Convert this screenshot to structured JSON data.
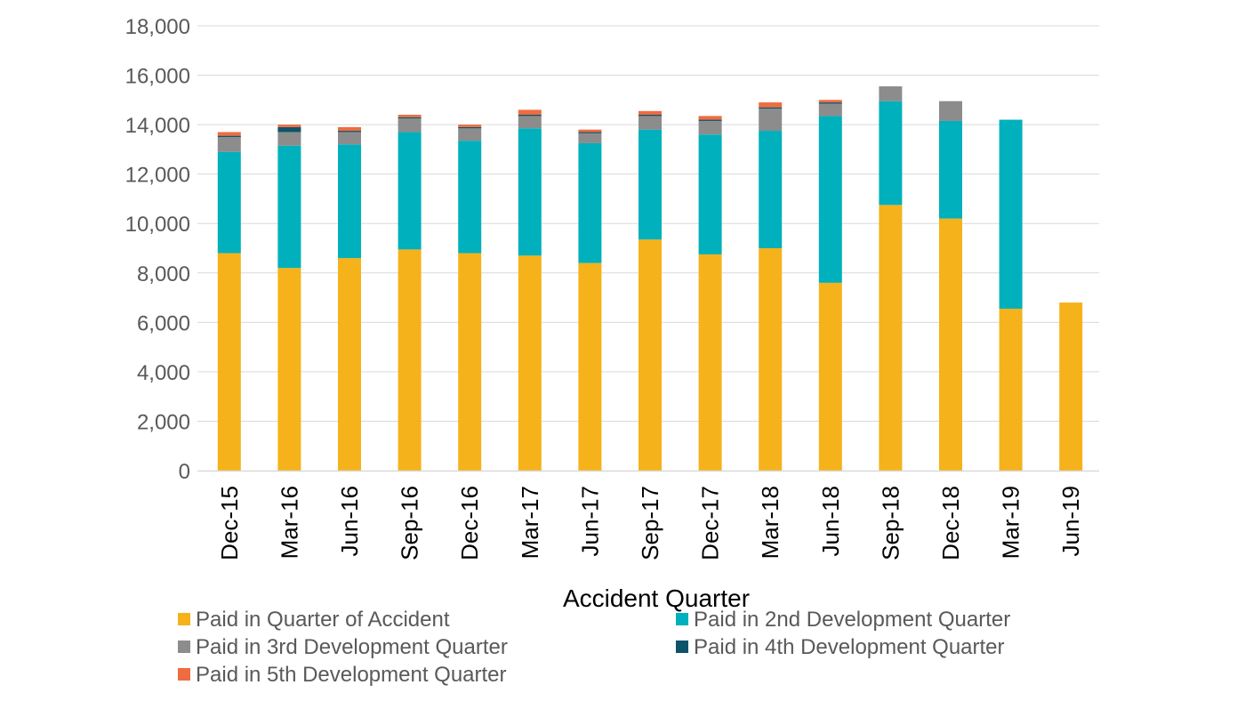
{
  "chart_data": {
    "type": "bar",
    "stacked": true,
    "title": "",
    "xlabel": "Accident Quarter",
    "ylabel": "",
    "ylim": [
      0,
      18000
    ],
    "yticks": [
      0,
      2000,
      4000,
      6000,
      8000,
      10000,
      12000,
      14000,
      16000,
      18000
    ],
    "ytick_labels": [
      "0",
      "2,000",
      "4,000",
      "6,000",
      "8,000",
      "10,000",
      "12,000",
      "14,000",
      "16,000",
      "18,000"
    ],
    "grid": true,
    "legend_position": "bottom",
    "categories": [
      "Dec-15",
      "Mar-16",
      "Jun-16",
      "Sep-16",
      "Dec-16",
      "Mar-17",
      "Jun-17",
      "Sep-17",
      "Dec-17",
      "Mar-18",
      "Jun-18",
      "Sep-18",
      "Dec-18",
      "Mar-19",
      "Jun-19"
    ],
    "series": [
      {
        "name": "Paid in Quarter of Accident",
        "color": "#F5B21B",
        "values": [
          8800,
          8200,
          8600,
          8950,
          8800,
          8700,
          8400,
          9350,
          8750,
          9000,
          7600,
          10750,
          10200,
          6550,
          6800
        ]
      },
      {
        "name": "Paid in 2nd Development Quarter",
        "color": "#00B0BC",
        "values": [
          4100,
          4950,
          4600,
          4750,
          4550,
          5150,
          4850,
          4450,
          4850,
          4750,
          6750,
          4200,
          3950,
          7650,
          0
        ]
      },
      {
        "name": "Paid in 3rd Development Quarter",
        "color": "#8C8C8C",
        "values": [
          600,
          550,
          500,
          550,
          500,
          500,
          400,
          550,
          550,
          900,
          500,
          600,
          800,
          0,
          0
        ]
      },
      {
        "name": "Paid in 4th Development Quarter",
        "color": "#0E5369",
        "values": [
          50,
          200,
          50,
          50,
          50,
          50,
          50,
          50,
          50,
          50,
          50,
          0,
          0,
          0,
          0
        ]
      },
      {
        "name": "Paid in 5th Development Quarter",
        "color": "#EE6C3F",
        "values": [
          150,
          100,
          150,
          100,
          100,
          200,
          100,
          150,
          150,
          200,
          100,
          0,
          0,
          0,
          0
        ]
      }
    ]
  }
}
